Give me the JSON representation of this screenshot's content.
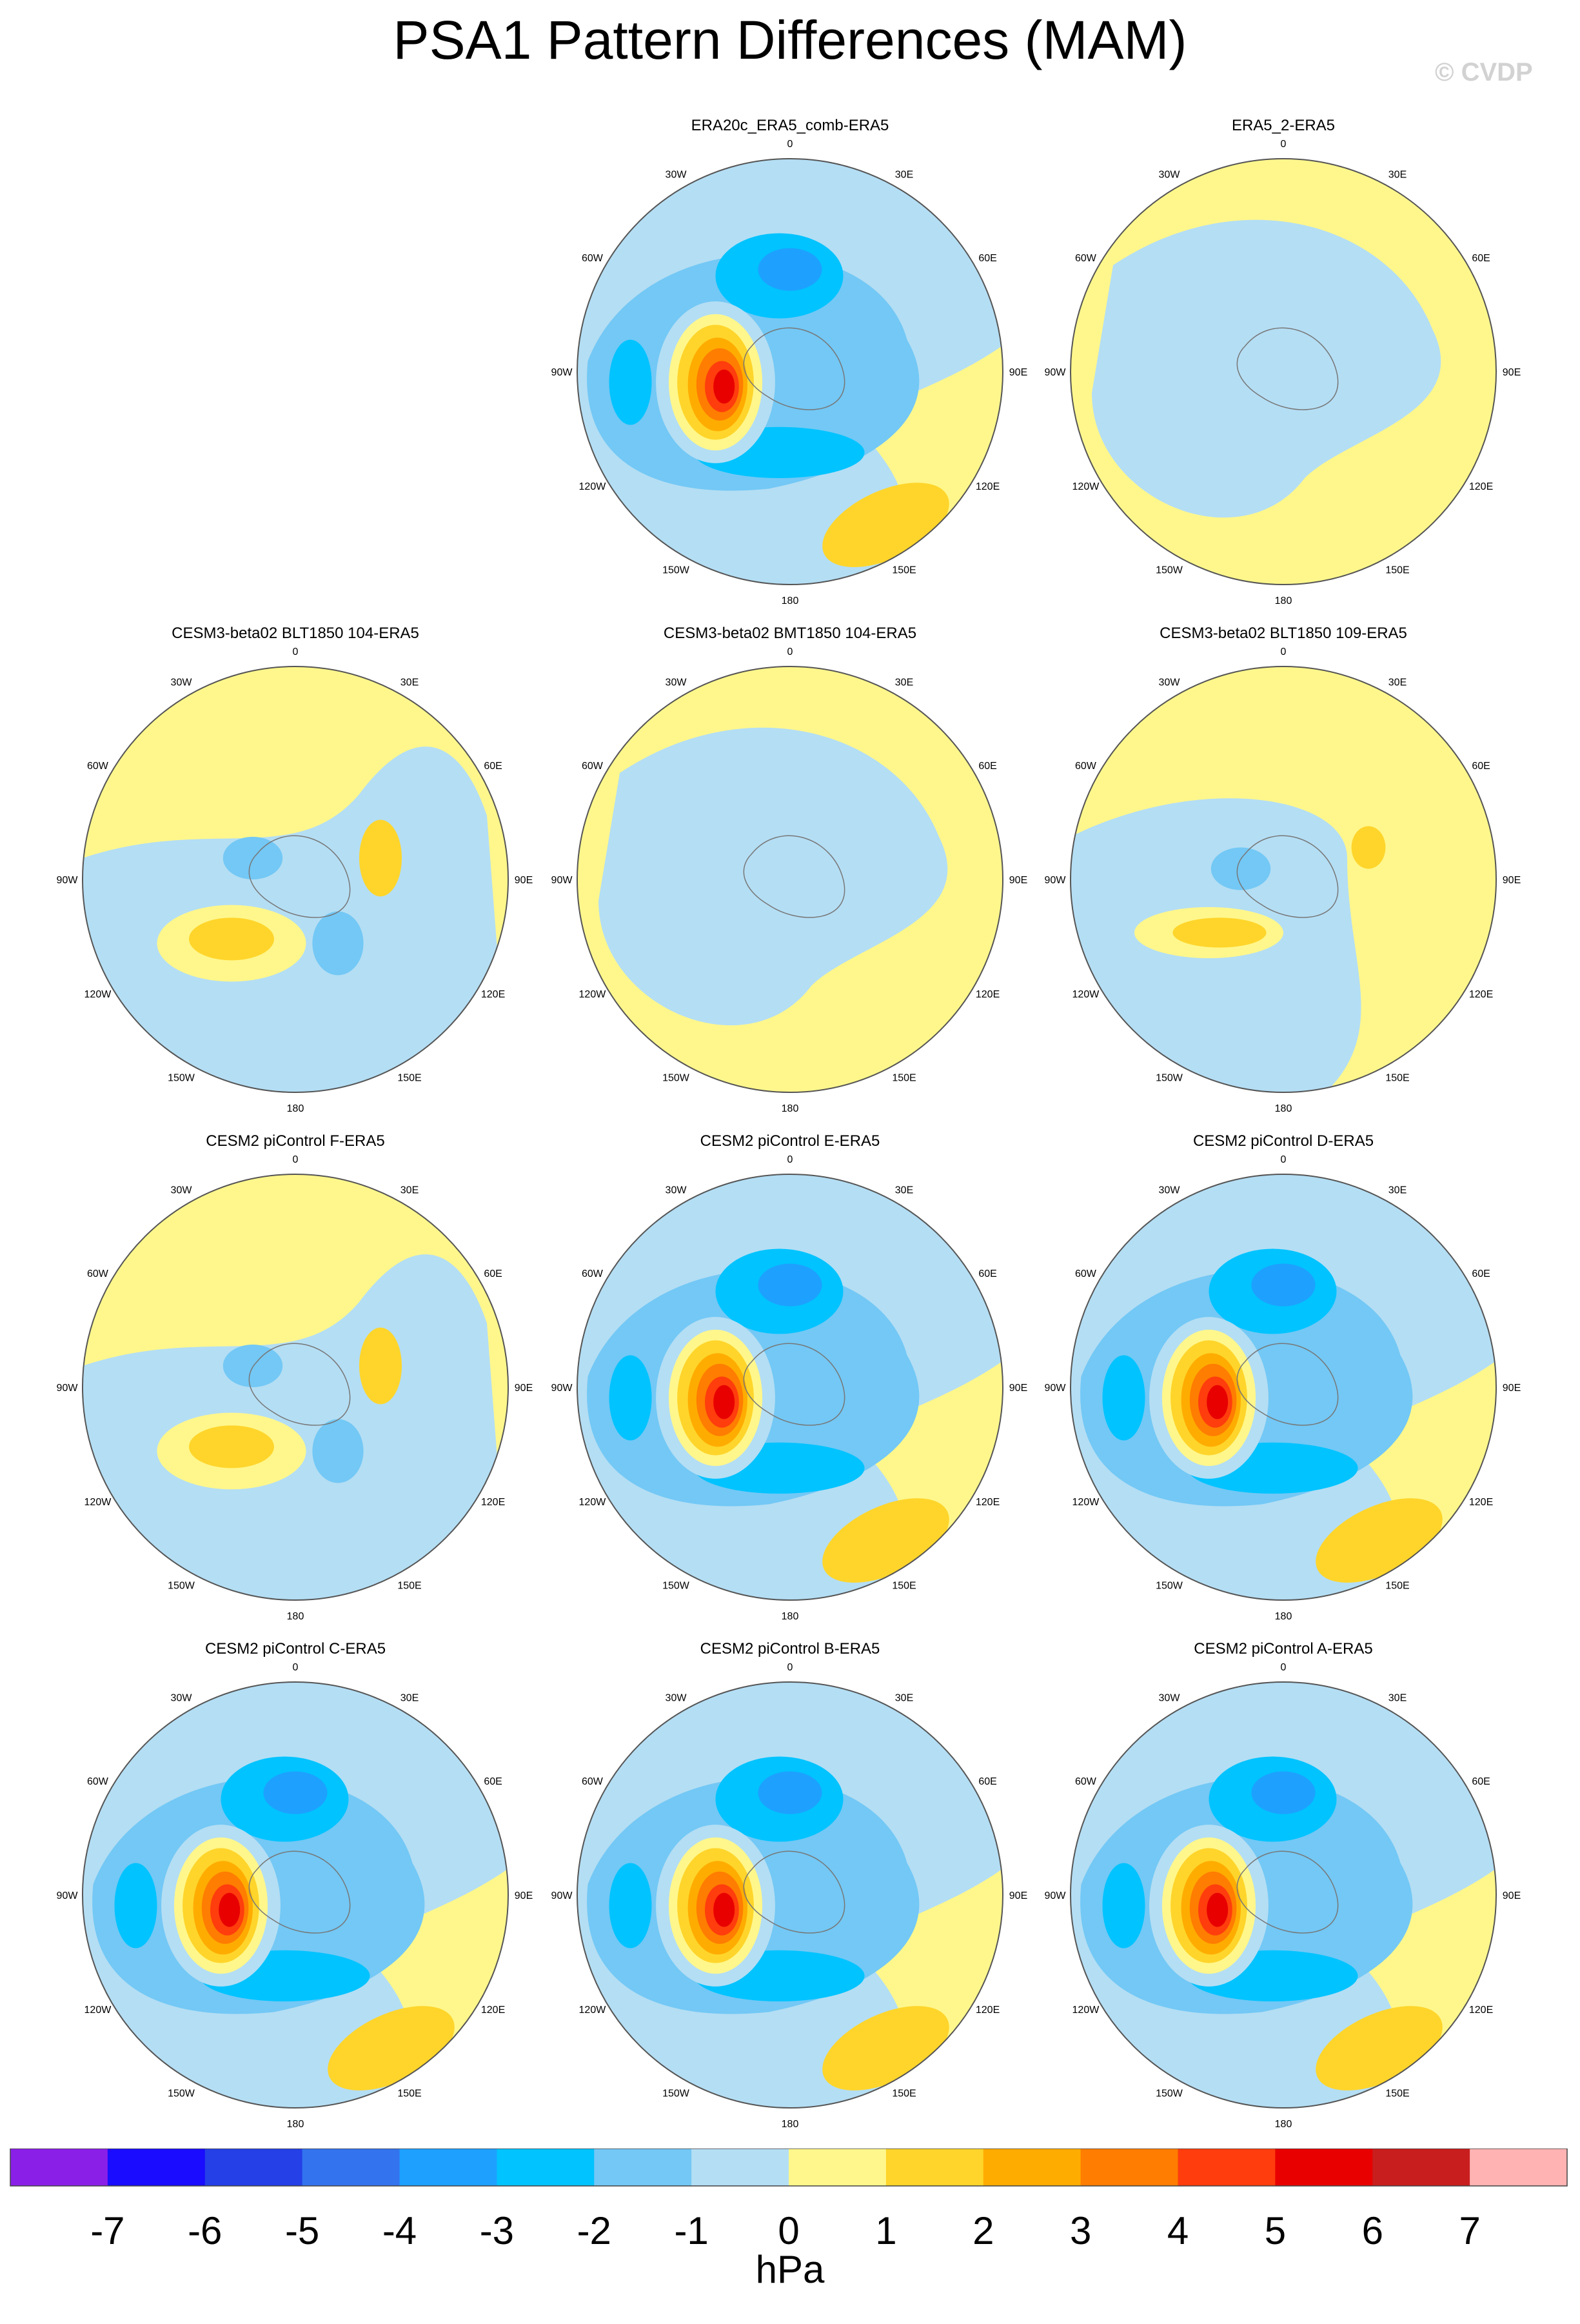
{
  "title": "PSA1 Pattern Differences (MAM)",
  "watermark": "© CVDP",
  "longitude_labels": [
    "0",
    "30E",
    "60E",
    "90E",
    "120E",
    "150E",
    "180",
    "150W",
    "120W",
    "90W",
    "60W",
    "30W"
  ],
  "panels": [
    {
      "id": "era20c-era5-comb",
      "row": 0,
      "col": 1,
      "title": "ERA20c_ERA5_comb-ERA5",
      "style": "strong"
    },
    {
      "id": "era5-2",
      "row": 0,
      "col": 2,
      "title": "ERA5_2-ERA5",
      "style": "weak"
    },
    {
      "id": "cesm3-blt-104",
      "row": 1,
      "col": 0,
      "title": "CESM3-beta02 BLT1850 104-ERA5",
      "style": "reversed"
    },
    {
      "id": "cesm3-bmt-104",
      "row": 1,
      "col": 1,
      "title": "CESM3-beta02 BMT1850 104-ERA5",
      "style": "weak"
    },
    {
      "id": "cesm3-blt-109",
      "row": 1,
      "col": 2,
      "title": "CESM3-beta02 BLT1850 109-ERA5",
      "style": "moderate"
    },
    {
      "id": "cesm2-f",
      "row": 2,
      "col": 0,
      "title": "CESM2 piControl F-ERA5",
      "style": "reversed"
    },
    {
      "id": "cesm2-e",
      "row": 2,
      "col": 1,
      "title": "CESM2 piControl E-ERA5",
      "style": "strong"
    },
    {
      "id": "cesm2-d",
      "row": 2,
      "col": 2,
      "title": "CESM2 piControl D-ERA5",
      "style": "strong"
    },
    {
      "id": "cesm2-c",
      "row": 3,
      "col": 0,
      "title": "CESM2 piControl C-ERA5",
      "style": "strong"
    },
    {
      "id": "cesm2-b",
      "row": 3,
      "col": 1,
      "title": "CESM2 piControl B-ERA5",
      "style": "strong"
    },
    {
      "id": "cesm2-a",
      "row": 3,
      "col": 2,
      "title": "CESM2 piControl A-ERA5",
      "style": "strong"
    }
  ],
  "colorbar": {
    "unit": "hPa",
    "tick_labels": [
      "-7",
      "-6",
      "-5",
      "-4",
      "-3",
      "-2",
      "-1",
      "0",
      "1",
      "2",
      "3",
      "4",
      "5",
      "6",
      "7"
    ],
    "colors": [
      "#8a1fe8",
      "#1a0cff",
      "#2540e6",
      "#3373ee",
      "#1ea0ff",
      "#00c3ff",
      "#73c8f5",
      "#b4def4",
      "#fff78c",
      "#ffd52b",
      "#ffac00",
      "#ff7d00",
      "#ff3d0d",
      "#e80000",
      "#c81e1e",
      "#ffb3b3"
    ]
  }
}
